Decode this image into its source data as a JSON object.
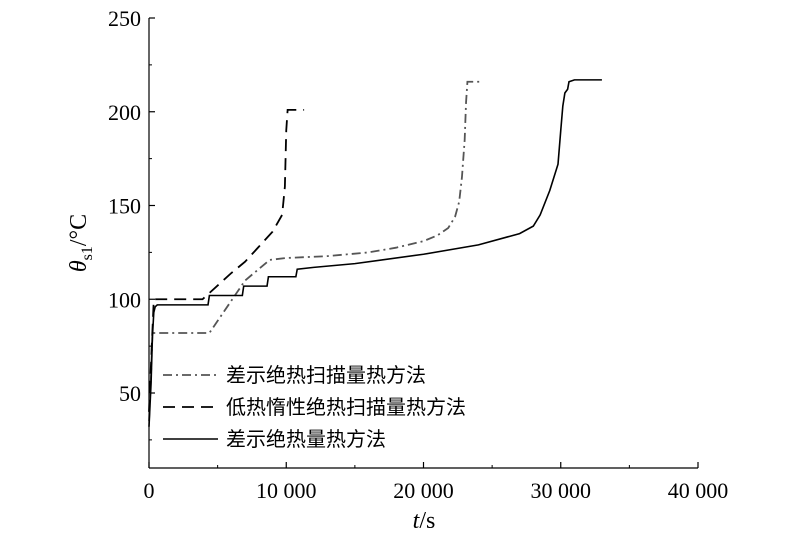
{
  "chart_data": {
    "type": "line",
    "title": "",
    "xlabel": {
      "var": "t",
      "unit": "/s"
    },
    "ylabel": {
      "var": "θ",
      "sub": "s1",
      "unit": "/°C"
    },
    "xlim": [
      0,
      40000
    ],
    "ylim": [
      10,
      250
    ],
    "x_ticks": [
      0,
      10000,
      20000,
      30000,
      40000
    ],
    "x_tick_labels": [
      "0",
      "10 000",
      "20 000",
      "30 000",
      "40 000"
    ],
    "y_ticks": [
      50,
      100,
      150,
      200,
      250
    ],
    "y_tick_labels": [
      "50",
      "100",
      "150",
      "200",
      "250"
    ],
    "grid": false,
    "legend_position": "bottom-left",
    "series": [
      {
        "name": "差示绝热扫描量热方法",
        "style": "dash-dot",
        "color": "#555555",
        "points": [
          [
            0,
            35
          ],
          [
            150,
            60
          ],
          [
            250,
            82
          ],
          [
            500,
            82
          ],
          [
            4200,
            82
          ],
          [
            4400,
            82
          ],
          [
            7000,
            110
          ],
          [
            8800,
            121
          ],
          [
            10000,
            122
          ],
          [
            13000,
            123
          ],
          [
            16000,
            125
          ],
          [
            18000,
            127.5
          ],
          [
            20000,
            131
          ],
          [
            21000,
            134
          ],
          [
            21800,
            138
          ],
          [
            22300,
            144
          ],
          [
            22600,
            152
          ],
          [
            22800,
            165
          ],
          [
            23000,
            185
          ],
          [
            23100,
            205
          ],
          [
            23200,
            216
          ],
          [
            23500,
            216
          ],
          [
            24200,
            216
          ]
        ]
      },
      {
        "name": "低热惰性绝热扫描量热方法",
        "style": "dash",
        "color": "#000000",
        "points": [
          [
            0,
            40
          ],
          [
            200,
            75
          ],
          [
            350,
            100
          ],
          [
            1000,
            100
          ],
          [
            3900,
            100
          ],
          [
            4200,
            102
          ],
          [
            6000,
            114
          ],
          [
            7000,
            120
          ],
          [
            8000,
            128
          ],
          [
            9000,
            136
          ],
          [
            9700,
            145
          ],
          [
            9900,
            160
          ],
          [
            10000,
            190
          ],
          [
            10100,
            201
          ],
          [
            10500,
            201
          ],
          [
            11300,
            201
          ]
        ]
      },
      {
        "name": "差示绝热量热方法",
        "style": "solid",
        "color": "#000000",
        "points": [
          [
            0,
            32
          ],
          [
            150,
            55
          ],
          [
            250,
            80
          ],
          [
            350,
            93
          ],
          [
            450,
            96
          ],
          [
            600,
            97
          ],
          [
            4300,
            97
          ],
          [
            4400,
            102
          ],
          [
            6800,
            102
          ],
          [
            6900,
            107
          ],
          [
            8600,
            107
          ],
          [
            8700,
            112
          ],
          [
            10700,
            112
          ],
          [
            10800,
            116
          ],
          [
            12000,
            117
          ],
          [
            15000,
            119
          ],
          [
            20000,
            124
          ],
          [
            24000,
            129
          ],
          [
            27000,
            135
          ],
          [
            28000,
            139
          ],
          [
            28500,
            145
          ],
          [
            29200,
            158
          ],
          [
            29800,
            172
          ],
          [
            30000,
            190
          ],
          [
            30150,
            203
          ],
          [
            30300,
            210
          ],
          [
            30500,
            212
          ],
          [
            30600,
            216
          ],
          [
            31000,
            217
          ],
          [
            33000,
            217
          ]
        ]
      }
    ]
  }
}
